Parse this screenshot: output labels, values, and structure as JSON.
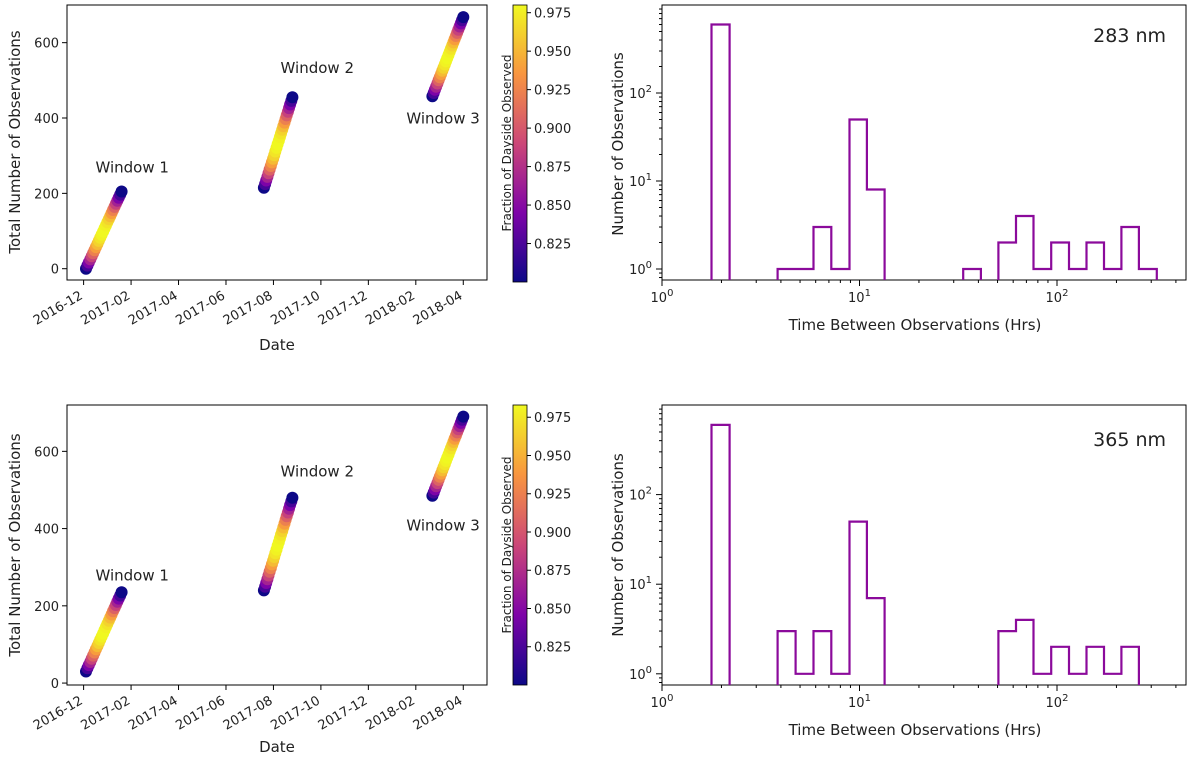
{
  "colors": {
    "histogram": "#8b0a9b",
    "axis": "#000000"
  },
  "colormap": "plasma",
  "chart_data": [
    {
      "id": "scatter_top",
      "type": "scatter",
      "xlabel": "Date",
      "ylabel": "Total Number of Observations",
      "x_ticks": [
        "2016-12",
        "2017-02",
        "2017-04",
        "2017-06",
        "2017-08",
        "2017-10",
        "2017-12",
        "2018-02",
        "2018-04"
      ],
      "y_ticks": [
        0,
        200,
        400,
        600
      ],
      "ylim": [
        -30,
        700
      ],
      "xlim_months": [
        -0.7,
        17.0
      ],
      "colorbar": {
        "label": "Fraction of Dayside Observed",
        "range": [
          0.8,
          0.98
        ],
        "ticks": [
          "0.825",
          "0.850",
          "0.875",
          "0.900",
          "0.925",
          "0.950",
          "0.975"
        ]
      },
      "annotations": [
        {
          "text": "Window 1",
          "x_month": 0.5,
          "y": 255
        },
        {
          "text": "Window 2",
          "x_month": 8.3,
          "y": 520
        },
        {
          "text": "Window 3",
          "x_month": 13.6,
          "y": 385
        }
      ],
      "series": [
        {
          "name": "Window 1",
          "start_month": 0.1,
          "end_month": 1.6,
          "y_start": 0,
          "y_end": 205
        },
        {
          "name": "Window 2",
          "start_month": 7.6,
          "end_month": 8.8,
          "y_start": 215,
          "y_end": 455
        },
        {
          "name": "Window 3",
          "start_month": 14.7,
          "end_month": 16.0,
          "y_start": 458,
          "y_end": 668
        }
      ]
    },
    {
      "id": "hist_top",
      "type": "bar",
      "title": "283 nm",
      "xlabel": "Time Between Observations (Hrs)",
      "ylabel": "Number of Observations",
      "xscale": "log",
      "yscale": "log",
      "xlim": [
        1,
        450
      ],
      "ylim": [
        0.75,
        1000
      ],
      "bin_edges": [
        1.78,
        2.2,
        3.85,
        4.75,
        5.85,
        7.2,
        8.9,
        10.9,
        13.4,
        33.5,
        41.2,
        50.5,
        62,
        76,
        93.5,
        115,
        141,
        173,
        212,
        260,
        320
      ],
      "counts": [
        600,
        0,
        1,
        1,
        3,
        1,
        50,
        8,
        0,
        1,
        0,
        2,
        4,
        1,
        2,
        1,
        2,
        1,
        3,
        1
      ]
    },
    {
      "id": "scatter_bottom",
      "type": "scatter",
      "xlabel": "Date",
      "ylabel": "Total Number of Observations",
      "x_ticks": [
        "2016-12",
        "2017-02",
        "2017-04",
        "2017-06",
        "2017-08",
        "2017-10",
        "2017-12",
        "2018-02",
        "2018-04"
      ],
      "y_ticks": [
        0,
        200,
        400,
        600
      ],
      "ylim": [
        -5,
        720
      ],
      "xlim_months": [
        -0.7,
        17.0
      ],
      "colorbar": {
        "label": "Fraction of Dayside Observed",
        "range": [
          0.8,
          0.983
        ],
        "ticks": [
          "0.825",
          "0.850",
          "0.875",
          "0.900",
          "0.925",
          "0.950",
          "0.975"
        ]
      },
      "annotations": [
        {
          "text": "Window 1",
          "x_month": 0.5,
          "y": 265
        },
        {
          "text": "Window 2",
          "x_month": 8.3,
          "y": 535
        },
        {
          "text": "Window 3",
          "x_month": 13.6,
          "y": 395
        }
      ],
      "series": [
        {
          "name": "Window 1",
          "start_month": 0.1,
          "end_month": 1.6,
          "y_start": 30,
          "y_end": 235
        },
        {
          "name": "Window 2",
          "start_month": 7.6,
          "end_month": 8.8,
          "y_start": 240,
          "y_end": 480
        },
        {
          "name": "Window 3",
          "start_month": 14.7,
          "end_month": 16.0,
          "y_start": 485,
          "y_end": 690
        }
      ]
    },
    {
      "id": "hist_bottom",
      "type": "bar",
      "title": "365 nm",
      "xlabel": "Time Between Observations (Hrs)",
      "ylabel": "Number of Observations",
      "xscale": "log",
      "yscale": "log",
      "xlim": [
        1,
        450
      ],
      "ylim": [
        0.75,
        1000
      ],
      "bin_edges": [
        1.78,
        2.2,
        3.85,
        4.75,
        5.85,
        7.2,
        8.9,
        10.9,
        13.4,
        50.5,
        62,
        76,
        93.5,
        115,
        141,
        173,
        212,
        260
      ],
      "counts": [
        600,
        0,
        3,
        1,
        3,
        1,
        50,
        7,
        0,
        3,
        4,
        1,
        2,
        1,
        2,
        1,
        2
      ]
    }
  ]
}
